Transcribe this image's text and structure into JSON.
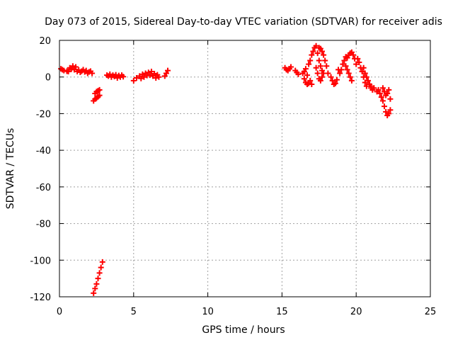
{
  "chart_data": {
    "type": "scatter",
    "title": "Day 073 of 2015, Sidereal Day-to-day VTEC variation (SDTVAR) for receiver adis",
    "xlabel": "GPS time / hours",
    "ylabel": "SDTVAR / TECUs",
    "xlim": [
      0,
      25
    ],
    "ylim": [
      -120,
      20
    ],
    "x_ticks": [
      0,
      5,
      10,
      15,
      20,
      25
    ],
    "y_ticks": [
      20,
      0,
      -20,
      -40,
      -60,
      -80,
      -100,
      -120
    ],
    "x_tick_labels": [
      "0",
      "5",
      "10",
      "15",
      "20",
      "25"
    ],
    "y_tick_labels": [
      "20",
      "0",
      "-20",
      "-40",
      "-60",
      "-80",
      "-100",
      "-120"
    ],
    "grid": true,
    "marker": "plus",
    "color": "#ff0000",
    "series": [
      {
        "name": "SDTVAR",
        "points": [
          [
            0.1,
            4.5
          ],
          [
            0.2,
            4.0
          ],
          [
            0.3,
            3.5
          ],
          [
            0.5,
            3.2
          ],
          [
            0.6,
            3.0
          ],
          [
            0.7,
            5.0
          ],
          [
            0.8,
            4.3
          ],
          [
            0.9,
            6.0
          ],
          [
            1.0,
            4.0
          ],
          [
            1.1,
            5.5
          ],
          [
            1.2,
            3.0
          ],
          [
            1.3,
            3.8
          ],
          [
            1.4,
            2.6
          ],
          [
            1.5,
            3.2
          ],
          [
            1.6,
            4.0
          ],
          [
            1.7,
            2.8
          ],
          [
            1.8,
            3.5
          ],
          [
            1.9,
            2.0
          ],
          [
            2.0,
            2.8
          ],
          [
            2.1,
            3.2
          ],
          [
            2.2,
            2.0
          ],
          [
            2.3,
            -13.0
          ],
          [
            2.4,
            -12.0
          ],
          [
            2.5,
            -11.5
          ],
          [
            2.6,
            -10.8
          ],
          [
            2.7,
            -10.0
          ],
          [
            2.4,
            -9.0
          ],
          [
            2.5,
            -8.0
          ],
          [
            2.6,
            -7.5
          ],
          [
            2.7,
            -7.0
          ],
          [
            2.3,
            -118.0
          ],
          [
            2.4,
            -115.5
          ],
          [
            2.5,
            -113.0
          ],
          [
            2.6,
            -110.0
          ],
          [
            2.7,
            -107.0
          ],
          [
            2.8,
            -104.0
          ],
          [
            2.9,
            -101.0
          ],
          [
            3.2,
            1.0
          ],
          [
            3.3,
            0.5
          ],
          [
            3.4,
            1.5
          ],
          [
            3.5,
            0.0
          ],
          [
            3.6,
            1.0
          ],
          [
            3.7,
            0.3
          ],
          [
            3.8,
            1.2
          ],
          [
            3.9,
            -0.5
          ],
          [
            4.0,
            0.8
          ],
          [
            4.1,
            0.0
          ],
          [
            4.2,
            1.0
          ],
          [
            4.3,
            0.2
          ],
          [
            5.0,
            -2.0
          ],
          [
            5.2,
            -0.5
          ],
          [
            5.4,
            0.5
          ],
          [
            5.5,
            -0.8
          ],
          [
            5.6,
            1.5
          ],
          [
            5.7,
            0.0
          ],
          [
            5.8,
            2.0
          ],
          [
            5.9,
            0.8
          ],
          [
            6.0,
            2.5
          ],
          [
            6.1,
            1.0
          ],
          [
            6.2,
            3.0
          ],
          [
            6.3,
            0.5
          ],
          [
            6.4,
            1.8
          ],
          [
            6.5,
            -0.5
          ],
          [
            6.6,
            1.2
          ],
          [
            6.7,
            0.0
          ],
          [
            7.1,
            0.5
          ],
          [
            7.2,
            2.0
          ],
          [
            7.3,
            3.5
          ],
          [
            15.2,
            5.0
          ],
          [
            15.3,
            4.0
          ],
          [
            15.4,
            3.5
          ],
          [
            15.5,
            4.5
          ],
          [
            15.6,
            5.5
          ],
          [
            15.9,
            3.5
          ],
          [
            16.0,
            2.5
          ],
          [
            16.1,
            1.5
          ],
          [
            16.4,
            2.0
          ],
          [
            16.5,
            -1.0
          ],
          [
            16.6,
            -3.0
          ],
          [
            16.7,
            -4.0
          ],
          [
            16.8,
            -3.5
          ],
          [
            16.9,
            -2.0
          ],
          [
            17.0,
            -4.0
          ],
          [
            16.5,
            3.0
          ],
          [
            16.6,
            4.5
          ],
          [
            16.7,
            1.0
          ],
          [
            16.8,
            7.0
          ],
          [
            16.9,
            9.0
          ],
          [
            17.0,
            12.0
          ],
          [
            17.1,
            14.0
          ],
          [
            17.2,
            16.0
          ],
          [
            17.3,
            17.0
          ],
          [
            17.4,
            13.0
          ],
          [
            17.5,
            9.0
          ],
          [
            17.6,
            6.0
          ],
          [
            17.7,
            3.5
          ],
          [
            17.8,
            2.0
          ],
          [
            17.5,
            16.0
          ],
          [
            17.6,
            15.5
          ],
          [
            17.7,
            14.0
          ],
          [
            17.8,
            12.0
          ],
          [
            17.9,
            9.0
          ],
          [
            18.0,
            6.0
          ],
          [
            18.1,
            2.0
          ],
          [
            17.3,
            5.0
          ],
          [
            17.4,
            2.0
          ],
          [
            17.5,
            -1.0
          ],
          [
            17.6,
            -2.0
          ],
          [
            17.7,
            0.0
          ],
          [
            18.3,
            0.0
          ],
          [
            18.4,
            -2.0
          ],
          [
            18.5,
            -4.0
          ],
          [
            18.6,
            -3.5
          ],
          [
            18.7,
            -1.5
          ],
          [
            18.8,
            4.0
          ],
          [
            18.9,
            2.0
          ],
          [
            19.0,
            4.0
          ],
          [
            19.1,
            7.0
          ],
          [
            19.2,
            9.0
          ],
          [
            19.3,
            11.0
          ],
          [
            19.4,
            10.5
          ],
          [
            19.5,
            12.0
          ],
          [
            19.6,
            13.0
          ],
          [
            19.7,
            13.5
          ],
          [
            19.8,
            12.0
          ],
          [
            19.9,
            10.0
          ],
          [
            20.0,
            7.0
          ],
          [
            19.3,
            6.0
          ],
          [
            19.4,
            4.0
          ],
          [
            19.5,
            2.0
          ],
          [
            19.6,
            0.0
          ],
          [
            19.7,
            -2.0
          ],
          [
            20.1,
            10.0
          ],
          [
            20.2,
            8.0
          ],
          [
            20.3,
            5.0
          ],
          [
            20.4,
            3.0
          ],
          [
            20.5,
            0.0
          ],
          [
            20.6,
            -3.0
          ],
          [
            20.7,
            -5.0
          ],
          [
            20.5,
            5.0
          ],
          [
            20.6,
            2.0
          ],
          [
            20.7,
            0.0
          ],
          [
            20.8,
            -2.0
          ],
          [
            20.9,
            -4.0
          ],
          [
            21.0,
            -6.0
          ],
          [
            21.1,
            -7.0
          ],
          [
            21.0,
            -5.0
          ],
          [
            21.2,
            -6.0
          ],
          [
            21.4,
            -8.0
          ],
          [
            21.5,
            -7.0
          ],
          [
            21.6,
            -9.0
          ],
          [
            21.7,
            -11.0
          ],
          [
            21.8,
            -13.0
          ],
          [
            21.9,
            -16.0
          ],
          [
            22.0,
            -19.0
          ],
          [
            22.1,
            -21.0
          ],
          [
            22.2,
            -20.0
          ],
          [
            22.3,
            -18.0
          ],
          [
            21.8,
            -6.0
          ],
          [
            21.9,
            -8.0
          ],
          [
            22.0,
            -10.0
          ],
          [
            22.1,
            -9.0
          ],
          [
            22.2,
            -7.0
          ],
          [
            22.3,
            -12.0
          ]
        ]
      }
    ]
  }
}
